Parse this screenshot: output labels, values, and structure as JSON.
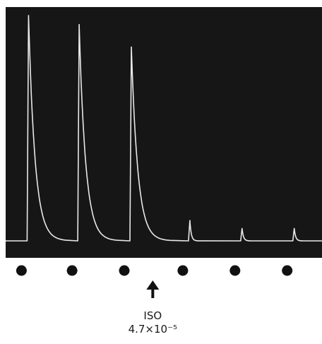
{
  "chart_data": {
    "type": "line",
    "background_color": "#161616",
    "trace_color": "#e8e8e8",
    "stimulus_marker_color": "#111111",
    "events": [
      {
        "stim_time": 0.05,
        "peak": 1.0
      },
      {
        "stim_time": 0.21,
        "peak": 0.96
      },
      {
        "stim_time": 0.375,
        "peak": 0.86
      },
      {
        "stim_time": 0.56,
        "peak": 0.09
      },
      {
        "stim_time": 0.725,
        "peak": 0.055
      },
      {
        "stim_time": 0.89,
        "peak": 0.055
      }
    ],
    "annotation": {
      "label": "ISO",
      "concentration": "4.7×10⁻⁵",
      "arrow_time": 0.465
    }
  }
}
